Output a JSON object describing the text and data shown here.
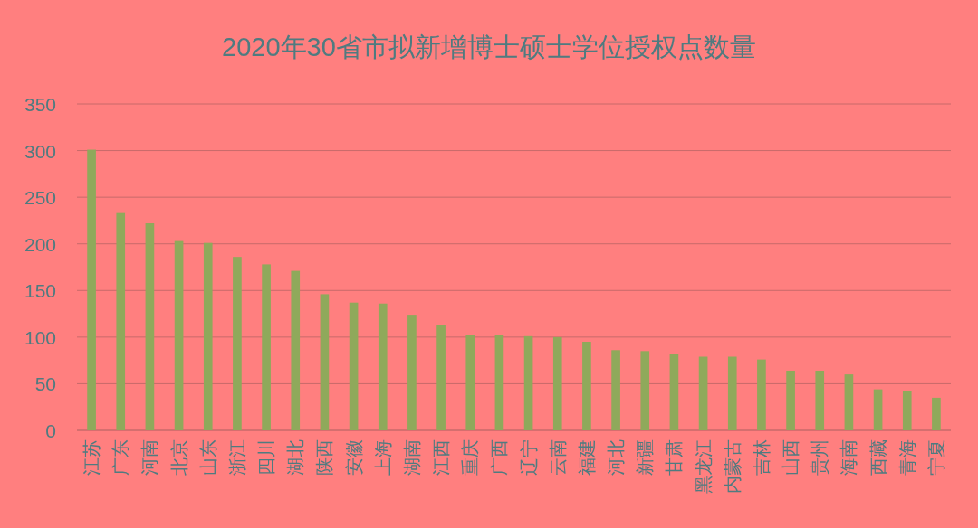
{
  "chart_data": {
    "type": "bar",
    "title": "2020年30省市拟新增博士硕士学位授权点数量",
    "categories": [
      "江苏",
      "广东",
      "河南",
      "北京",
      "山东",
      "浙江",
      "四川",
      "湖北",
      "陕西",
      "安徽",
      "上海",
      "湖南",
      "江西",
      "重庆",
      "广西",
      "辽宁",
      "云南",
      "福建",
      "河北",
      "新疆",
      "甘肃",
      "黑龙江",
      "内蒙古",
      "吉林",
      "山西",
      "贵州",
      "海南",
      "西藏",
      "青海",
      "宁夏"
    ],
    "values": [
      301,
      233,
      222,
      203,
      201,
      186,
      178,
      171,
      146,
      137,
      136,
      124,
      113,
      102,
      102,
      101,
      100,
      95,
      86,
      85,
      82,
      79,
      79,
      76,
      64,
      64,
      60,
      44,
      42,
      35
    ],
    "color": "#8fa95b",
    "ylim": [
      0,
      350
    ],
    "yticks": [
      0,
      50,
      100,
      150,
      200,
      250,
      300,
      350
    ],
    "grid": "y"
  }
}
